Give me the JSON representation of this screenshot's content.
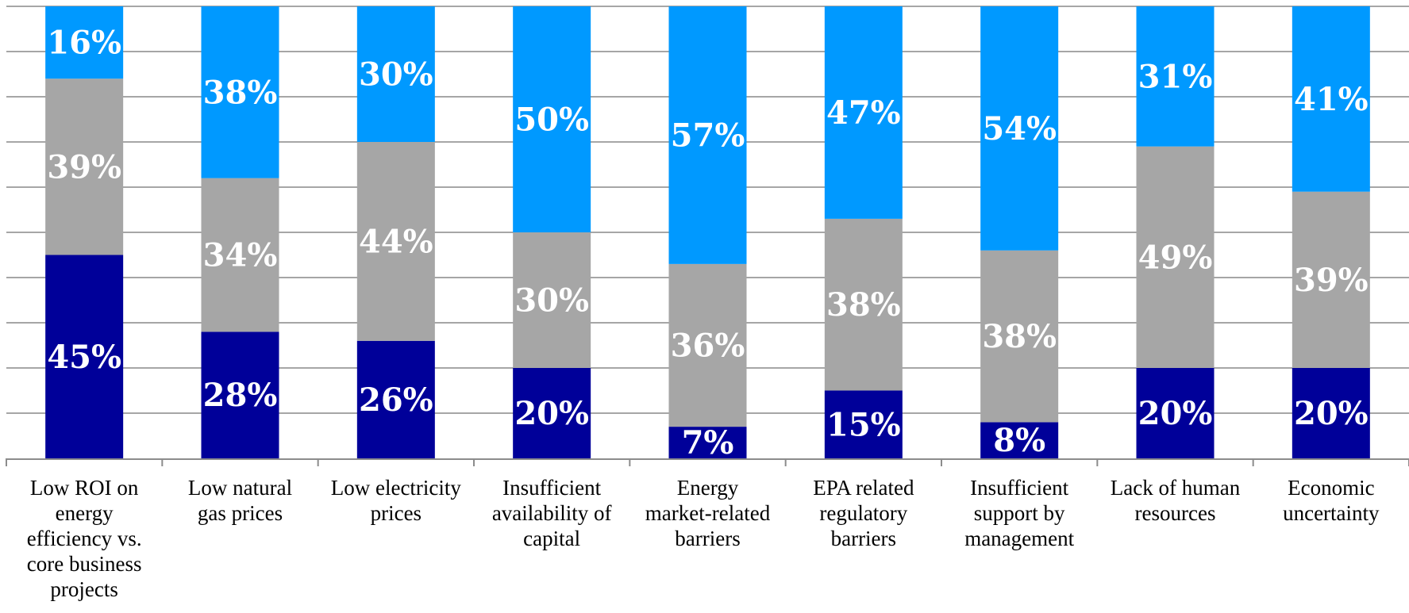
{
  "chart_data": {
    "type": "bar",
    "stacked": true,
    "title": "",
    "xlabel": "",
    "ylabel": "",
    "ylim": [
      0,
      100
    ],
    "grid": true,
    "legend": "none",
    "categories": [
      [
        "Low ROI on",
        "energy",
        "efficiency vs.",
        "core business",
        "projects"
      ],
      [
        "Low natural",
        "gas prices"
      ],
      [
        "Low electricity",
        "prices"
      ],
      [
        "Insufficient",
        "availability of",
        "capital"
      ],
      [
        "Energy",
        "market-related",
        "barriers"
      ],
      [
        "EPA related",
        "regulatory",
        "barriers"
      ],
      [
        "Insufficient",
        "support by",
        "management"
      ],
      [
        "Lack of human",
        "resources"
      ],
      [
        "Economic",
        "uncertainty"
      ]
    ],
    "series": [
      {
        "color": "#000099",
        "values": [
          45,
          28,
          26,
          20,
          7,
          15,
          8,
          20,
          20
        ]
      },
      {
        "color": "#a6a6a6",
        "values": [
          39,
          34,
          44,
          30,
          36,
          38,
          38,
          49,
          39
        ]
      },
      {
        "color": "#0099ff",
        "values": [
          16,
          38,
          30,
          50,
          57,
          47,
          54,
          31,
          41
        ]
      }
    ],
    "data_labels": [
      [
        "45%",
        "28%",
        "26%",
        "20%",
        "7%",
        "15%",
        "8%",
        "20%",
        "20%"
      ],
      [
        "39%",
        "34%",
        "44%",
        "30%",
        "36%",
        "38%",
        "38%",
        "49%",
        "39%"
      ],
      [
        "16%",
        "38%",
        "30%",
        "50%",
        "57%",
        "47%",
        "54%",
        "31%",
        "41%"
      ]
    ]
  }
}
